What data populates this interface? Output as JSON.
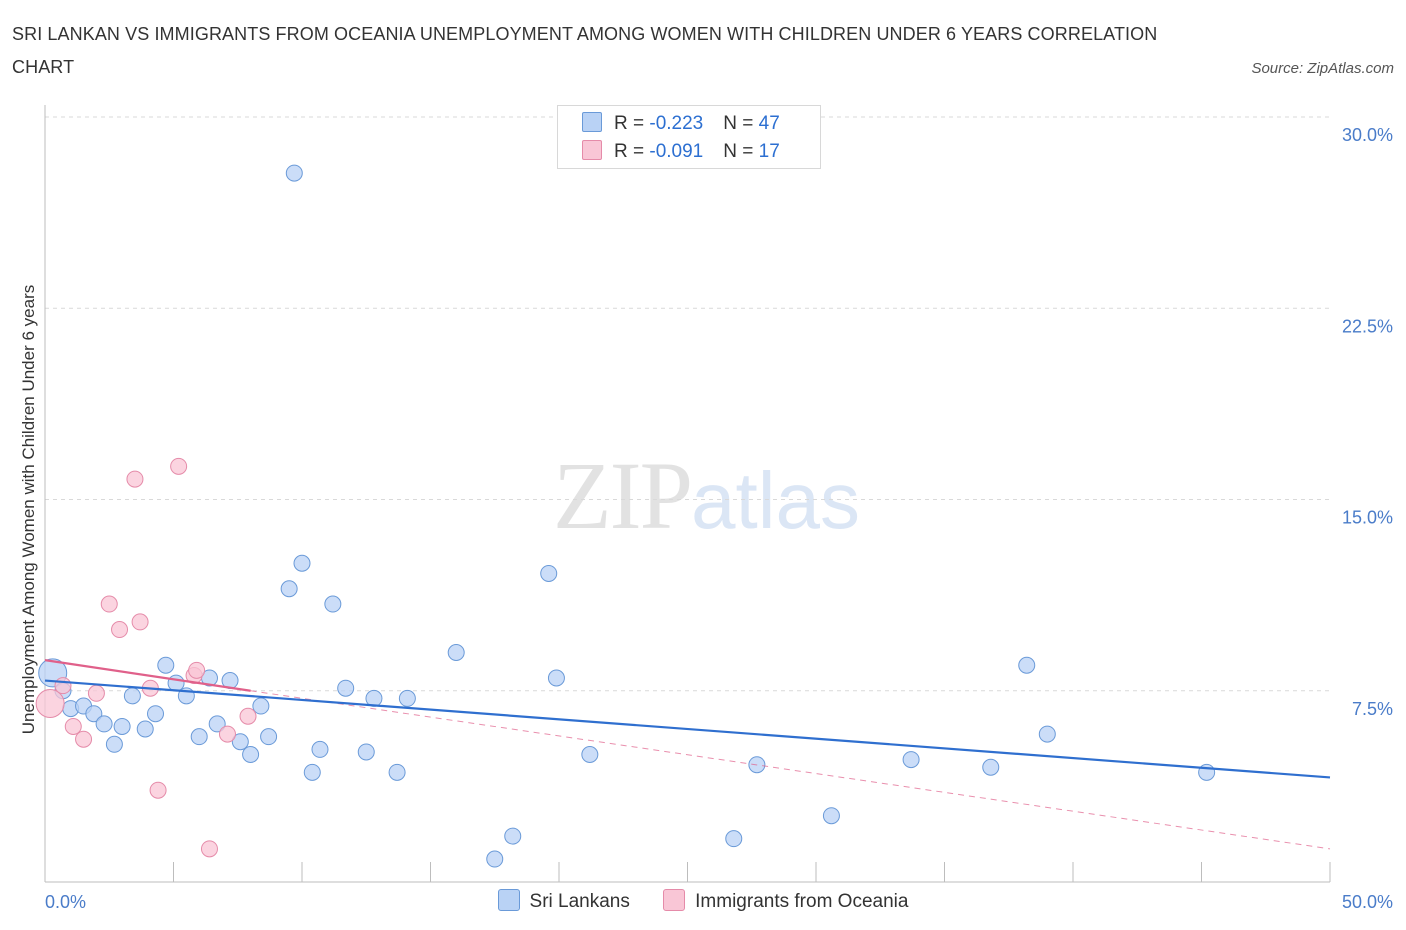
{
  "title": "SRI LANKAN VS IMMIGRANTS FROM OCEANIA UNEMPLOYMENT AMONG WOMEN WITH CHILDREN UNDER 6 YEARS CORRELATION CHART",
  "source": "Source: ZipAtlas.com",
  "watermark": {
    "zip": "ZIP",
    "atlas": "atlas"
  },
  "legend_top": [
    {
      "r_label": "R = ",
      "r_value": "-0.223",
      "n_label": "N = ",
      "n_value": "47"
    },
    {
      "r_label": "R = ",
      "r_value": "-0.091",
      "n_label": "N = ",
      "n_value": "17"
    }
  ],
  "legend_bottom": [
    "Sri Lankans",
    "Immigrants from Oceania"
  ],
  "colors": {
    "series1_fill": "#b9d2f5",
    "series1_stroke": "#6a9ad8",
    "series1_line": "#2f6fcf",
    "series2_fill": "#f9c6d6",
    "series2_stroke": "#e58ba9",
    "series2_line": "#e0608a",
    "grid": "#d9d9d9",
    "tick_text": "#4a7cc9"
  },
  "chart_data": {
    "type": "scatter",
    "xlabel": "",
    "ylabel": "Unemployment Among Women with Children Under 6 years",
    "xlim": [
      0,
      50
    ],
    "ylim": [
      0,
      30
    ],
    "y_ticks": [
      {
        "value": 7.5,
        "label": "7.5%"
      },
      {
        "value": 15,
        "label": "15.0%"
      },
      {
        "value": 22.5,
        "label": "22.5%"
      },
      {
        "value": 30,
        "label": "30.0%"
      }
    ],
    "x_tick_labels": [
      {
        "value": 0,
        "label": "0.0%"
      },
      {
        "value": 50,
        "label": "50.0%"
      }
    ],
    "x_minor_ticks": [
      0,
      5,
      10,
      15,
      20,
      25,
      30,
      35,
      40,
      45,
      50
    ],
    "grid": true,
    "series": [
      {
        "name": "Sri Lankans",
        "points": [
          [
            0.3,
            8.2
          ],
          [
            0.7,
            7.5
          ],
          [
            1.0,
            6.8
          ],
          [
            1.5,
            6.9
          ],
          [
            1.9,
            6.6
          ],
          [
            2.3,
            6.2
          ],
          [
            2.7,
            5.4
          ],
          [
            3.0,
            6.1
          ],
          [
            3.4,
            7.3
          ],
          [
            3.9,
            6.0
          ],
          [
            4.3,
            6.6
          ],
          [
            4.7,
            8.5
          ],
          [
            5.1,
            7.8
          ],
          [
            5.5,
            7.3
          ],
          [
            6.0,
            5.7
          ],
          [
            6.4,
            8.0
          ],
          [
            6.7,
            6.2
          ],
          [
            7.2,
            7.9
          ],
          [
            7.6,
            5.5
          ],
          [
            8.0,
            5.0
          ],
          [
            8.4,
            6.9
          ],
          [
            8.7,
            5.7
          ],
          [
            9.5,
            11.5
          ],
          [
            9.7,
            27.8
          ],
          [
            10.0,
            12.5
          ],
          [
            10.4,
            4.3
          ],
          [
            10.7,
            5.2
          ],
          [
            11.2,
            10.9
          ],
          [
            11.7,
            7.6
          ],
          [
            12.5,
            5.1
          ],
          [
            12.8,
            7.2
          ],
          [
            13.7,
            4.3
          ],
          [
            14.1,
            7.2
          ],
          [
            16.0,
            9.0
          ],
          [
            17.5,
            0.9
          ],
          [
            18.2,
            1.8
          ],
          [
            19.6,
            12.1
          ],
          [
            19.9,
            8.0
          ],
          [
            21.2,
            5.0
          ],
          [
            26.8,
            1.7
          ],
          [
            27.7,
            4.6
          ],
          [
            30.6,
            2.6
          ],
          [
            33.7,
            4.8
          ],
          [
            36.8,
            4.5
          ],
          [
            38.2,
            8.5
          ],
          [
            39.0,
            5.8
          ],
          [
            45.2,
            4.3
          ]
        ],
        "trend": {
          "x": [
            0,
            50
          ],
          "y": [
            7.9,
            4.1
          ]
        }
      },
      {
        "name": "Immigrants from Oceania",
        "points": [
          [
            0.2,
            7.0
          ],
          [
            0.7,
            7.7
          ],
          [
            1.1,
            6.1
          ],
          [
            1.5,
            5.6
          ],
          [
            2.0,
            7.4
          ],
          [
            2.5,
            10.9
          ],
          [
            2.9,
            9.9
          ],
          [
            3.5,
            15.8
          ],
          [
            3.7,
            10.2
          ],
          [
            4.1,
            7.6
          ],
          [
            4.4,
            3.6
          ],
          [
            5.2,
            16.3
          ],
          [
            5.8,
            8.1
          ],
          [
            5.9,
            8.3
          ],
          [
            6.4,
            1.3
          ],
          [
            7.1,
            5.8
          ],
          [
            7.9,
            6.5
          ]
        ],
        "trend": {
          "x": [
            0,
            8
          ],
          "y": [
            8.7,
            7.5
          ]
        },
        "trend_extended": {
          "x": [
            8,
            50
          ],
          "y": [
            7.5,
            1.3
          ]
        }
      }
    ]
  }
}
